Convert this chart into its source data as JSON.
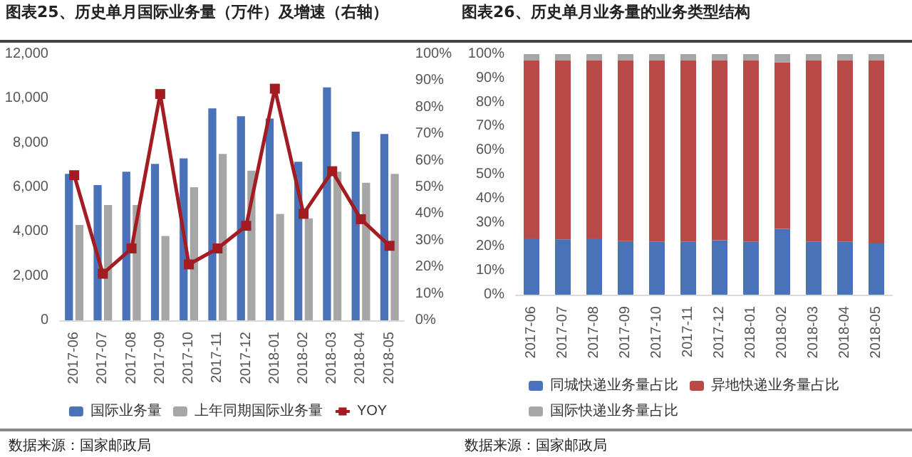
{
  "chart_data": [
    {
      "type": "bar",
      "title": "图表25、历史单月国际业务量（万件）及增速（右轴）",
      "categories": [
        "2017-06",
        "2017-07",
        "2017-08",
        "2017-09",
        "2017-10",
        "2017-11",
        "2017-12",
        "2018-01",
        "2018-02",
        "2018-03",
        "2018-04",
        "2018-05"
      ],
      "series": [
        {
          "name": "国际业务量",
          "color": "#4a72b8",
          "values": [
            6600,
            6100,
            6700,
            7050,
            7300,
            9550,
            9200,
            9100,
            7150,
            10500,
            8500,
            8400
          ]
        },
        {
          "name": "上年同期国际业务量",
          "color": "#a6a6a6",
          "values": [
            4300,
            5200,
            5200,
            3800,
            6000,
            7500,
            6750,
            4800,
            4600,
            6700,
            6200,
            6600
          ]
        },
        {
          "name": "YOY",
          "type": "line",
          "axis": "y2",
          "color": "#a31c22",
          "marker": "square",
          "values": [
            54.5,
            17.5,
            27,
            85,
            21,
            27,
            35.5,
            87,
            40,
            56,
            38,
            28
          ]
        }
      ],
      "ylim": [
        0,
        12000
      ],
      "yticks": [
        {
          "value": 0,
          "label": "0"
        },
        {
          "value": 2000,
          "label": "2,000"
        },
        {
          "value": 4000,
          "label": "4,000"
        },
        {
          "value": 6000,
          "label": "6,000"
        },
        {
          "value": 8000,
          "label": "8,000"
        },
        {
          "value": 10000,
          "label": "10,000"
        },
        {
          "value": 12000,
          "label": "12,000"
        }
      ],
      "y2lim": [
        0,
        100
      ],
      "y2ticks": [
        {
          "value": 0,
          "label": "0%"
        },
        {
          "value": 10,
          "label": "10%"
        },
        {
          "value": 20,
          "label": "20%"
        },
        {
          "value": 30,
          "label": "30%"
        },
        {
          "value": 40,
          "label": "40%"
        },
        {
          "value": 50,
          "label": "50%"
        },
        {
          "value": 60,
          "label": "60%"
        },
        {
          "value": 70,
          "label": "70%"
        },
        {
          "value": 80,
          "label": "80%"
        },
        {
          "value": 90,
          "label": "90%"
        },
        {
          "value": 100,
          "label": "100%"
        }
      ],
      "grid": false,
      "legend": "bottom",
      "annotations": [
        "数据来源：国家邮政局"
      ]
    },
    {
      "type": "bar",
      "title": "图表26、历史单月业务量的业务类型结构",
      "stacked": true,
      "categories": [
        "2017-06",
        "2017-07",
        "2017-08",
        "2017-09",
        "2017-10",
        "2017-11",
        "2017-12",
        "2018-01",
        "2018-02",
        "2018-03",
        "2018-04",
        "2018-05"
      ],
      "series": [
        {
          "name": "同城快递业务量占比",
          "color": "#4a72b8",
          "values": [
            23.4,
            23,
            23.4,
            22.3,
            22,
            22,
            22.6,
            22,
            27.4,
            22,
            22,
            21.6
          ]
        },
        {
          "name": "异地快递业务量占比",
          "color": "#b94a48",
          "values": [
            74.1,
            74.5,
            74.1,
            75.2,
            75.5,
            75.5,
            74.9,
            75.5,
            69.1,
            75.5,
            75.5,
            75.9
          ]
        },
        {
          "name": "国际快递业务量占比",
          "color": "#a6a6a6",
          "values": [
            2.5,
            2.5,
            2.5,
            2.5,
            2.5,
            2.5,
            2.5,
            2.5,
            3.5,
            2.5,
            2.5,
            2.5
          ]
        }
      ],
      "ylim": [
        0,
        100
      ],
      "yticks": [
        {
          "value": 0,
          "label": "0%"
        },
        {
          "value": 10,
          "label": "10%"
        },
        {
          "value": 20,
          "label": "20%"
        },
        {
          "value": 30,
          "label": "30%"
        },
        {
          "value": 40,
          "label": "40%"
        },
        {
          "value": 50,
          "label": "50%"
        },
        {
          "value": 60,
          "label": "60%"
        },
        {
          "value": 70,
          "label": "70%"
        },
        {
          "value": 80,
          "label": "80%"
        },
        {
          "value": 90,
          "label": "90%"
        },
        {
          "value": 100,
          "label": "100%"
        }
      ],
      "grid": false,
      "legend": "bottom",
      "annotations": [
        "数据来源：国家邮政局"
      ]
    }
  ]
}
